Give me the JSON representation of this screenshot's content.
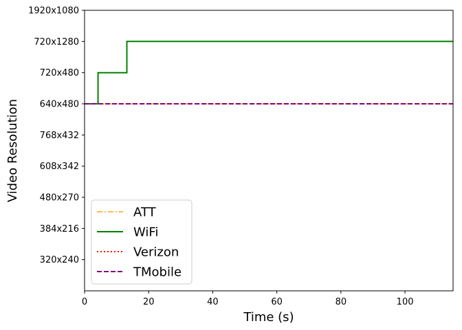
{
  "chart_data": {
    "type": "line",
    "title": "",
    "xlabel": "Time (s)",
    "ylabel": "Video Resolution",
    "xlim": [
      0,
      115
    ],
    "x_ticks": [
      0,
      20,
      40,
      60,
      80,
      100
    ],
    "y_tick_labels": [
      "320x240",
      "384x216",
      "480x270",
      "608x342",
      "768x432",
      "640x480",
      "720x480",
      "720x1280",
      "1920x1080"
    ],
    "y_tick_levels": [
      1,
      2,
      3,
      4,
      5,
      6,
      7,
      8,
      9
    ],
    "ylim": [
      0,
      9
    ],
    "grid": false,
    "legend_position": "lower-left",
    "series": [
      {
        "name": "ATT",
        "color": "#ffb84d",
        "dash": "dashdot",
        "x": [
          0,
          115
        ],
        "y": [
          6,
          6
        ]
      },
      {
        "name": "WiFi",
        "color": "#008000",
        "dash": "solid",
        "step": true,
        "x": [
          0,
          4.2,
          13.2,
          115
        ],
        "y": [
          6,
          7,
          8,
          8
        ]
      },
      {
        "name": "Verizon",
        "color": "#ff0000",
        "dash": "dotted",
        "x": [
          0,
          115
        ],
        "y": [
          6,
          6
        ]
      },
      {
        "name": "TMobile",
        "color": "#800080",
        "dash": "dashed",
        "x": [
          0,
          115
        ],
        "y": [
          6,
          6
        ]
      }
    ]
  }
}
